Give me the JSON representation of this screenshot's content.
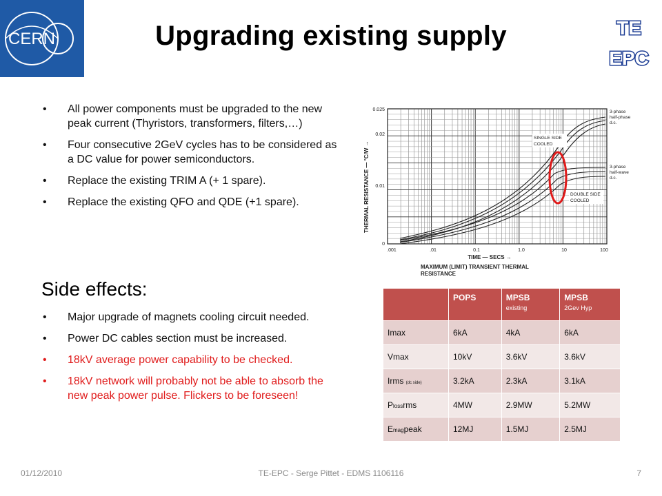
{
  "logo": {
    "text": "CERN",
    "icon": "cern-logo"
  },
  "title": "Upgrading existing supply",
  "badge": {
    "line1": "TE",
    "line2": "EPC"
  },
  "bullets": [
    {
      "text": "All power components must be upgraded to the new peak current (Thyristors, transformers, filters,…)"
    },
    {
      "text": "Four consecutive 2GeV cycles has to be considered as a DC value for power semiconductors."
    },
    {
      "text": "Replace the existing TRIM A (+ 1 spare)."
    },
    {
      "text": "Replace the existing QFO and QDE (+1 spare)."
    }
  ],
  "side_effects_title": "Side effects:",
  "side_effects": [
    {
      "text": "Major upgrade of magnets cooling circuit needed.",
      "color": "#111111"
    },
    {
      "text": "Power DC cables section must be increased.",
      "color": "#111111"
    },
    {
      "text": "18kV average power capability to be checked.",
      "color": "#e01b1b"
    },
    {
      "text": "18kV network will probably not be able to absorb the new peak power pulse. Flickers to be foreseen!",
      "color": "#e01b1b"
    }
  ],
  "chart": {
    "ylabel": "THERMAL RESISTANCE — °C/W →",
    "xlabel": "TIME — SECS →",
    "y_ticks": [
      "0.025",
      "0.02",
      "0.01",
      "0"
    ],
    "x_ticks": [
      ".001",
      ".01",
      "0.1",
      "1.0",
      "10",
      "100"
    ],
    "caption_line1": "MAXIMUM (LIMIT) TRANSIENT THERMAL",
    "caption_line2": "RESISTANCE",
    "labels": {
      "single_side_1": "SINGLE SIDE",
      "single_side_2": "COOLED",
      "double_side_1": "DOUBLE SIDE",
      "double_side_2": "COOLED",
      "full_wave_1": "3-phase",
      "full_wave_2": "half-phase",
      "full_wave_3": "d.c.",
      "half_wave_1": "3-phase",
      "half_wave_2": "half-wave",
      "half_wave_3": "d.c."
    },
    "highlight_color": "#e01b1b"
  },
  "table": {
    "headers": [
      {
        "label": "",
        "sub": ""
      },
      {
        "label": "POPS",
        "sub": ""
      },
      {
        "label": "MPSB",
        "sub": "existing"
      },
      {
        "label": "MPSB",
        "sub": "2Gev Hyp"
      }
    ],
    "rows": [
      {
        "label": "Imax",
        "label_sub": "",
        "label_suffix": "",
        "values": [
          "6kA",
          "4kA",
          "6kA"
        ]
      },
      {
        "label": "Vmax",
        "label_sub": "",
        "label_suffix": "",
        "values": [
          "10kV",
          "3.6kV",
          "3.6kV"
        ]
      },
      {
        "label": "Irms",
        "label_sub": "(dc side)",
        "label_suffix": "",
        "values": [
          "3.2kA",
          "2.3kA",
          "3.1kA"
        ]
      },
      {
        "label": "P",
        "label_sub": "loss",
        "label_suffix": "rms",
        "values": [
          "4MW",
          "2.9MW",
          "5.2MW"
        ]
      },
      {
        "label": "E",
        "label_sub": "mag",
        "label_suffix": "peak",
        "values": [
          "12MJ",
          "1.5MJ",
          "2.5MJ"
        ]
      }
    ],
    "header_color": "#c0504d"
  },
  "footer": {
    "date": "01/12/2010",
    "center": "TE-EPC - Serge Pittet - EDMS 1106116",
    "page": "7"
  }
}
